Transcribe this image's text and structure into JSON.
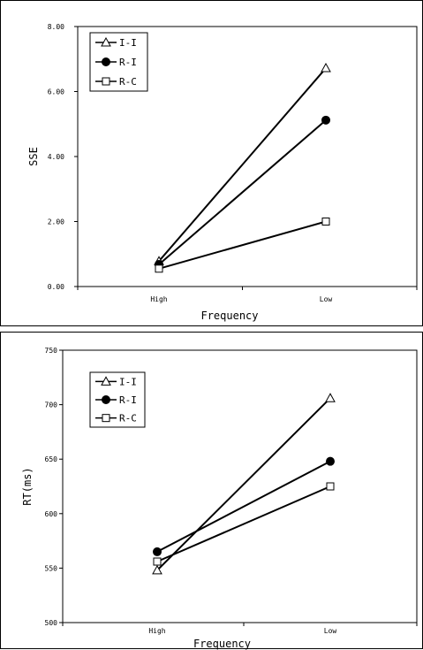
{
  "chart_data": [
    {
      "type": "line",
      "categories": [
        "High",
        "Low"
      ],
      "series": [
        {
          "name": "I-I",
          "marker": "triangle",
          "values": [
            0.78,
            6.72
          ]
        },
        {
          "name": "R-I",
          "marker": "circle",
          "values": [
            0.68,
            5.12
          ]
        },
        {
          "name": "R-C",
          "marker": "square",
          "values": [
            0.55,
            2.0
          ]
        }
      ],
      "xlabel": "Frequency",
      "ylabel": "SSE",
      "ylim": [
        0,
        8
      ],
      "yticks": [
        "0.00",
        "2.00",
        "4.00",
        "6.00",
        "8.00"
      ],
      "grid": false,
      "legend": "top-left",
      "colors": {
        "line": "#000000",
        "background": "#ffffff"
      }
    },
    {
      "type": "line",
      "categories": [
        "High",
        "Low"
      ],
      "series": [
        {
          "name": "I-I",
          "marker": "triangle",
          "values": [
            548,
            706
          ]
        },
        {
          "name": "R-I",
          "marker": "circle",
          "values": [
            565,
            648
          ]
        },
        {
          "name": "R-C",
          "marker": "square",
          "values": [
            556,
            625
          ]
        }
      ],
      "xlabel": "Frequency",
      "ylabel": "RT(ms)",
      "ylim": [
        500,
        750
      ],
      "yticks": [
        "500",
        "550",
        "600",
        "650",
        "700",
        "750"
      ],
      "grid": false,
      "legend": "top-left",
      "colors": {
        "line": "#000000",
        "background": "#ffffff"
      }
    }
  ]
}
